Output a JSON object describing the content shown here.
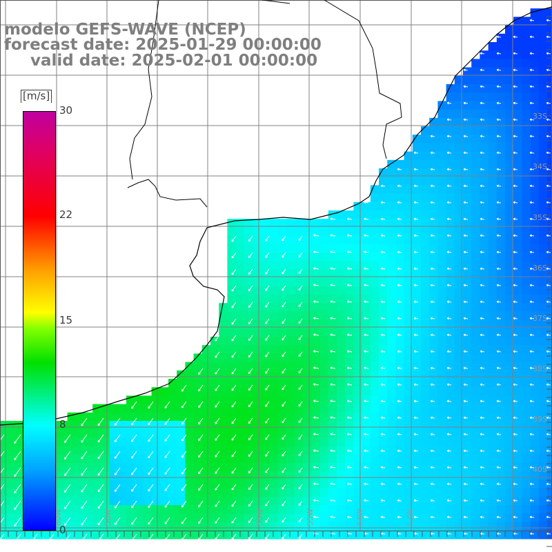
{
  "header": {
    "model": "modelo GEFS-WAVE (NCEP)",
    "forecast_date": "forecast date: 2025-01-29 00:00:00",
    "valid_date": "valid date: 2025-02-01 00:00:00"
  },
  "colorbar": {
    "unit": "[m/s]",
    "ticks": [
      "30",
      "22",
      "15",
      "8",
      "0"
    ],
    "tick_values": [
      30,
      22,
      15,
      8,
      0
    ],
    "colors": [
      "#0000ff",
      "#00a0ff",
      "#00ffff",
      "#00e000",
      "#80ff00",
      "#ffff00",
      "#ffa000",
      "#ff0000",
      "#e00060",
      "#c000a0"
    ]
  },
  "map": {
    "lat_labels": [
      "33S",
      "34S",
      "35S",
      "36S",
      "37S",
      "38S",
      "39S",
      "40S"
    ],
    "lon_labels": [
      "60W",
      "58W",
      "56W",
      "55W",
      "54W",
      "53W"
    ],
    "field": "wind speed and direction",
    "land_color": "#ffffff"
  }
}
